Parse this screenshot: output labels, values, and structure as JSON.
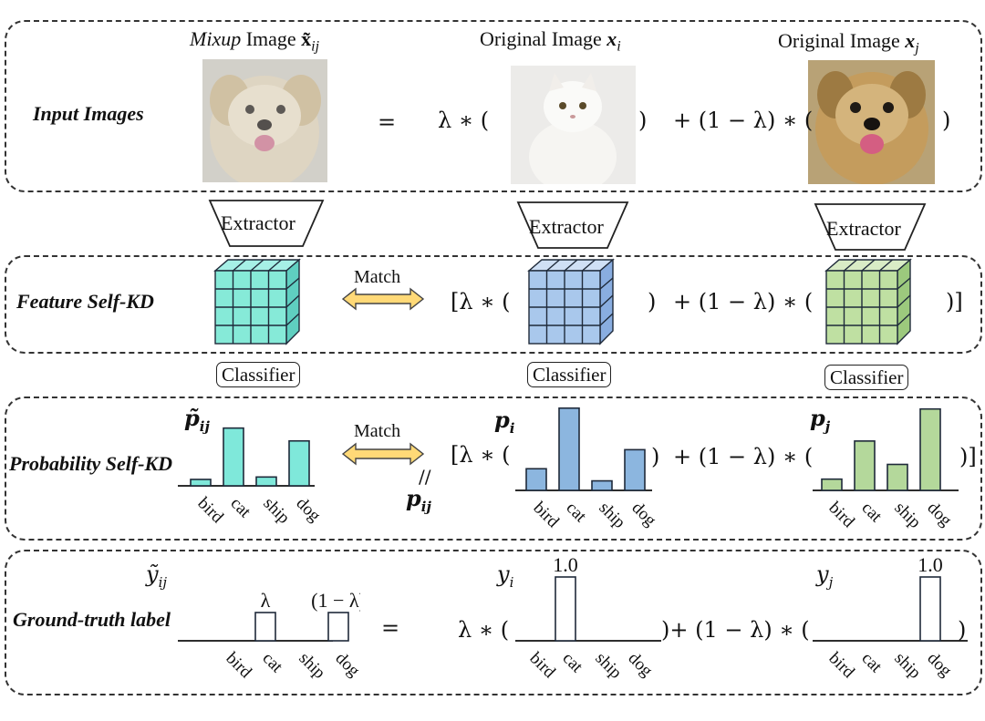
{
  "rows": {
    "input": "Input Images",
    "feature": "Feature Self-KD",
    "probability": "Probability Self-KD",
    "label": "Ground-truth label"
  },
  "captions": {
    "mixup_italic": "Mixup",
    "mixup_rest": " Image ",
    "mixup_symbol": "x̃",
    "orig_i_text": "Original Image ",
    "orig_i_symbol": "x",
    "orig_j_text": "Original Image ",
    "orig_j_symbol": "x"
  },
  "subscripts": {
    "ij": "ij",
    "i": "i",
    "j": "j"
  },
  "operators": {
    "equals": "=",
    "lambda_open": "λ ∗ (",
    "close": ")",
    "plus_one_minus": "+ (1 − λ) ∗ (",
    "bracket_lambda_open": "[λ ∗ (",
    "bracket_close": ")]",
    "parallel": "//"
  },
  "modules": {
    "extractor": "Extractor",
    "classifier": "Classifier",
    "match": "Match"
  },
  "symbols": {
    "p_tilde": "p̃",
    "p": "p",
    "y_tilde": "ỹ",
    "y": "y"
  },
  "categories": [
    "bird",
    "cat",
    "ship",
    "dog"
  ],
  "chart_data": [
    {
      "type": "bar",
      "name_symbol": "p̃ij",
      "categories": [
        "bird",
        "cat",
        "ship",
        "dog"
      ],
      "values": [
        0.08,
        0.72,
        0.11,
        0.56
      ],
      "color": "#7fe8da"
    },
    {
      "type": "bar",
      "name_symbol": "pi",
      "categories": [
        "bird",
        "cat",
        "ship",
        "dog"
      ],
      "values": [
        0.25,
        0.95,
        0.11,
        0.47
      ],
      "color": "#8cb6df"
    },
    {
      "type": "bar",
      "name_symbol": "pj",
      "categories": [
        "bird",
        "cat",
        "ship",
        "dog"
      ],
      "values": [
        0.13,
        0.57,
        0.3,
        0.94
      ],
      "color": "#b4d89b"
    },
    {
      "type": "bar",
      "name_symbol": "ỹij",
      "categories": [
        "bird",
        "cat",
        "ship",
        "dog"
      ],
      "values": [
        0,
        0.5,
        0,
        0.5
      ],
      "data_labels": [
        "",
        "λ",
        "",
        "(1 − λ)"
      ],
      "color": "#ffffff"
    },
    {
      "type": "bar",
      "name_symbol": "yi",
      "categories": [
        "bird",
        "cat",
        "ship",
        "dog"
      ],
      "values": [
        0,
        1.0,
        0,
        0
      ],
      "data_labels": [
        "",
        "1.0",
        "",
        ""
      ],
      "color": "#ffffff"
    },
    {
      "type": "bar",
      "name_symbol": "yj",
      "categories": [
        "bird",
        "cat",
        "ship",
        "dog"
      ],
      "values": [
        0,
        0,
        0,
        1.0
      ],
      "data_labels": [
        "",
        "",
        "",
        "1.0"
      ],
      "color": "#ffffff"
    }
  ],
  "colors": {
    "teal": "#7fe8da",
    "blue": "#a9c8ec",
    "green": "#bfe0a2",
    "arrow": "#ffd977"
  }
}
